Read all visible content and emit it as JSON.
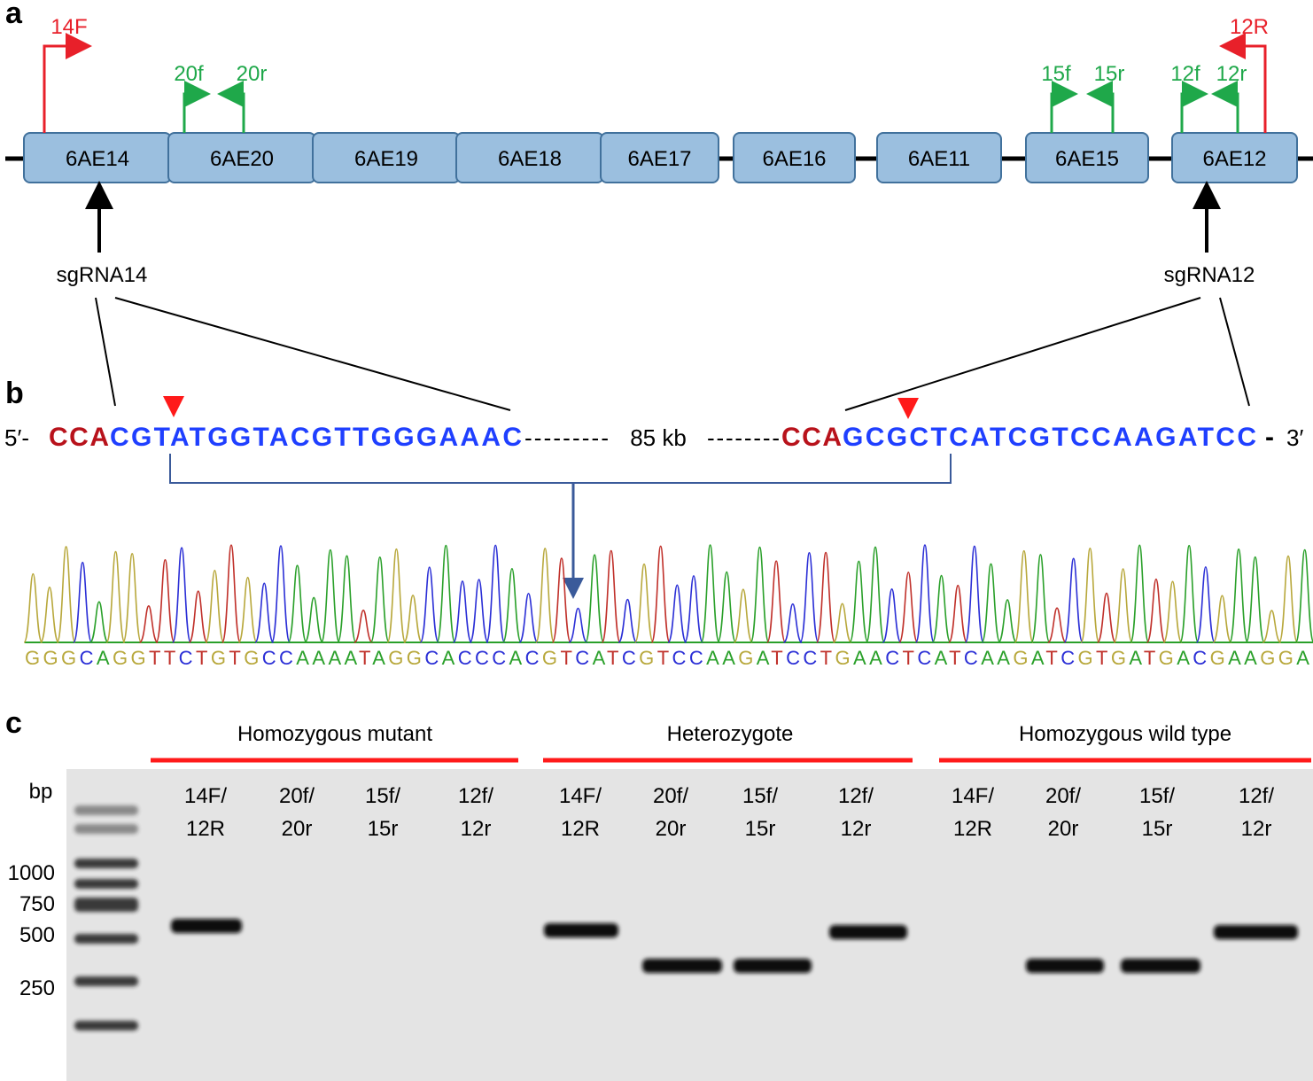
{
  "panel_a": {
    "label": "a",
    "genes": [
      "6AE14",
      "6AE20",
      "6AE19",
      "6AE18",
      "6AE17",
      "6AE16",
      "6AE11",
      "6AE15",
      "6AE12"
    ],
    "outer_primers": [
      "14F",
      "12R"
    ],
    "inner_primers": [
      "20f",
      "20r",
      "15f",
      "15r",
      "12f",
      "12r"
    ],
    "sgrnas": [
      "sgRNA14",
      "sgRNA12"
    ]
  },
  "panel_b": {
    "label": "b",
    "five_prime": "5′-",
    "left_pam": "CCA",
    "left_target": "CGTATGGTACGTTGGGAAAC",
    "left_gap": "---------",
    "gap_size": "85 kb",
    "right_gap": "--------",
    "right_pam": "CCA",
    "right_target": "GCGCTCATCGTCCAAGATCC",
    "end_dash": "-",
    "three_prime": "3′",
    "trace_sequence": "GGGCAGGTTCTGTGCCAAAATAGGCACCCACGTCATCGTCCAAGATCCTGAACTCATCAAGATCGTGATGACGAAGGA"
  },
  "panel_c": {
    "label": "c",
    "groups": [
      "Homozygous mutant",
      "Heterozygote",
      "Homozygous wild type"
    ],
    "size_unit": "bp",
    "ladder": [
      "1000",
      "750",
      "500",
      "250"
    ],
    "lanes": [
      [
        "14F/",
        "12R"
      ],
      [
        "20f/",
        "20r"
      ],
      [
        "15f/",
        "15r"
      ],
      [
        "12f/",
        "12r"
      ],
      [
        "14F/",
        "12R"
      ],
      [
        "20f/",
        "20r"
      ],
      [
        "15f/",
        "15r"
      ],
      [
        "12f/",
        "12r"
      ],
      [
        "14F/",
        "12R"
      ],
      [
        "20f/",
        "20r"
      ],
      [
        "15f/",
        "15r"
      ],
      [
        "12f/",
        "12r"
      ]
    ]
  }
}
